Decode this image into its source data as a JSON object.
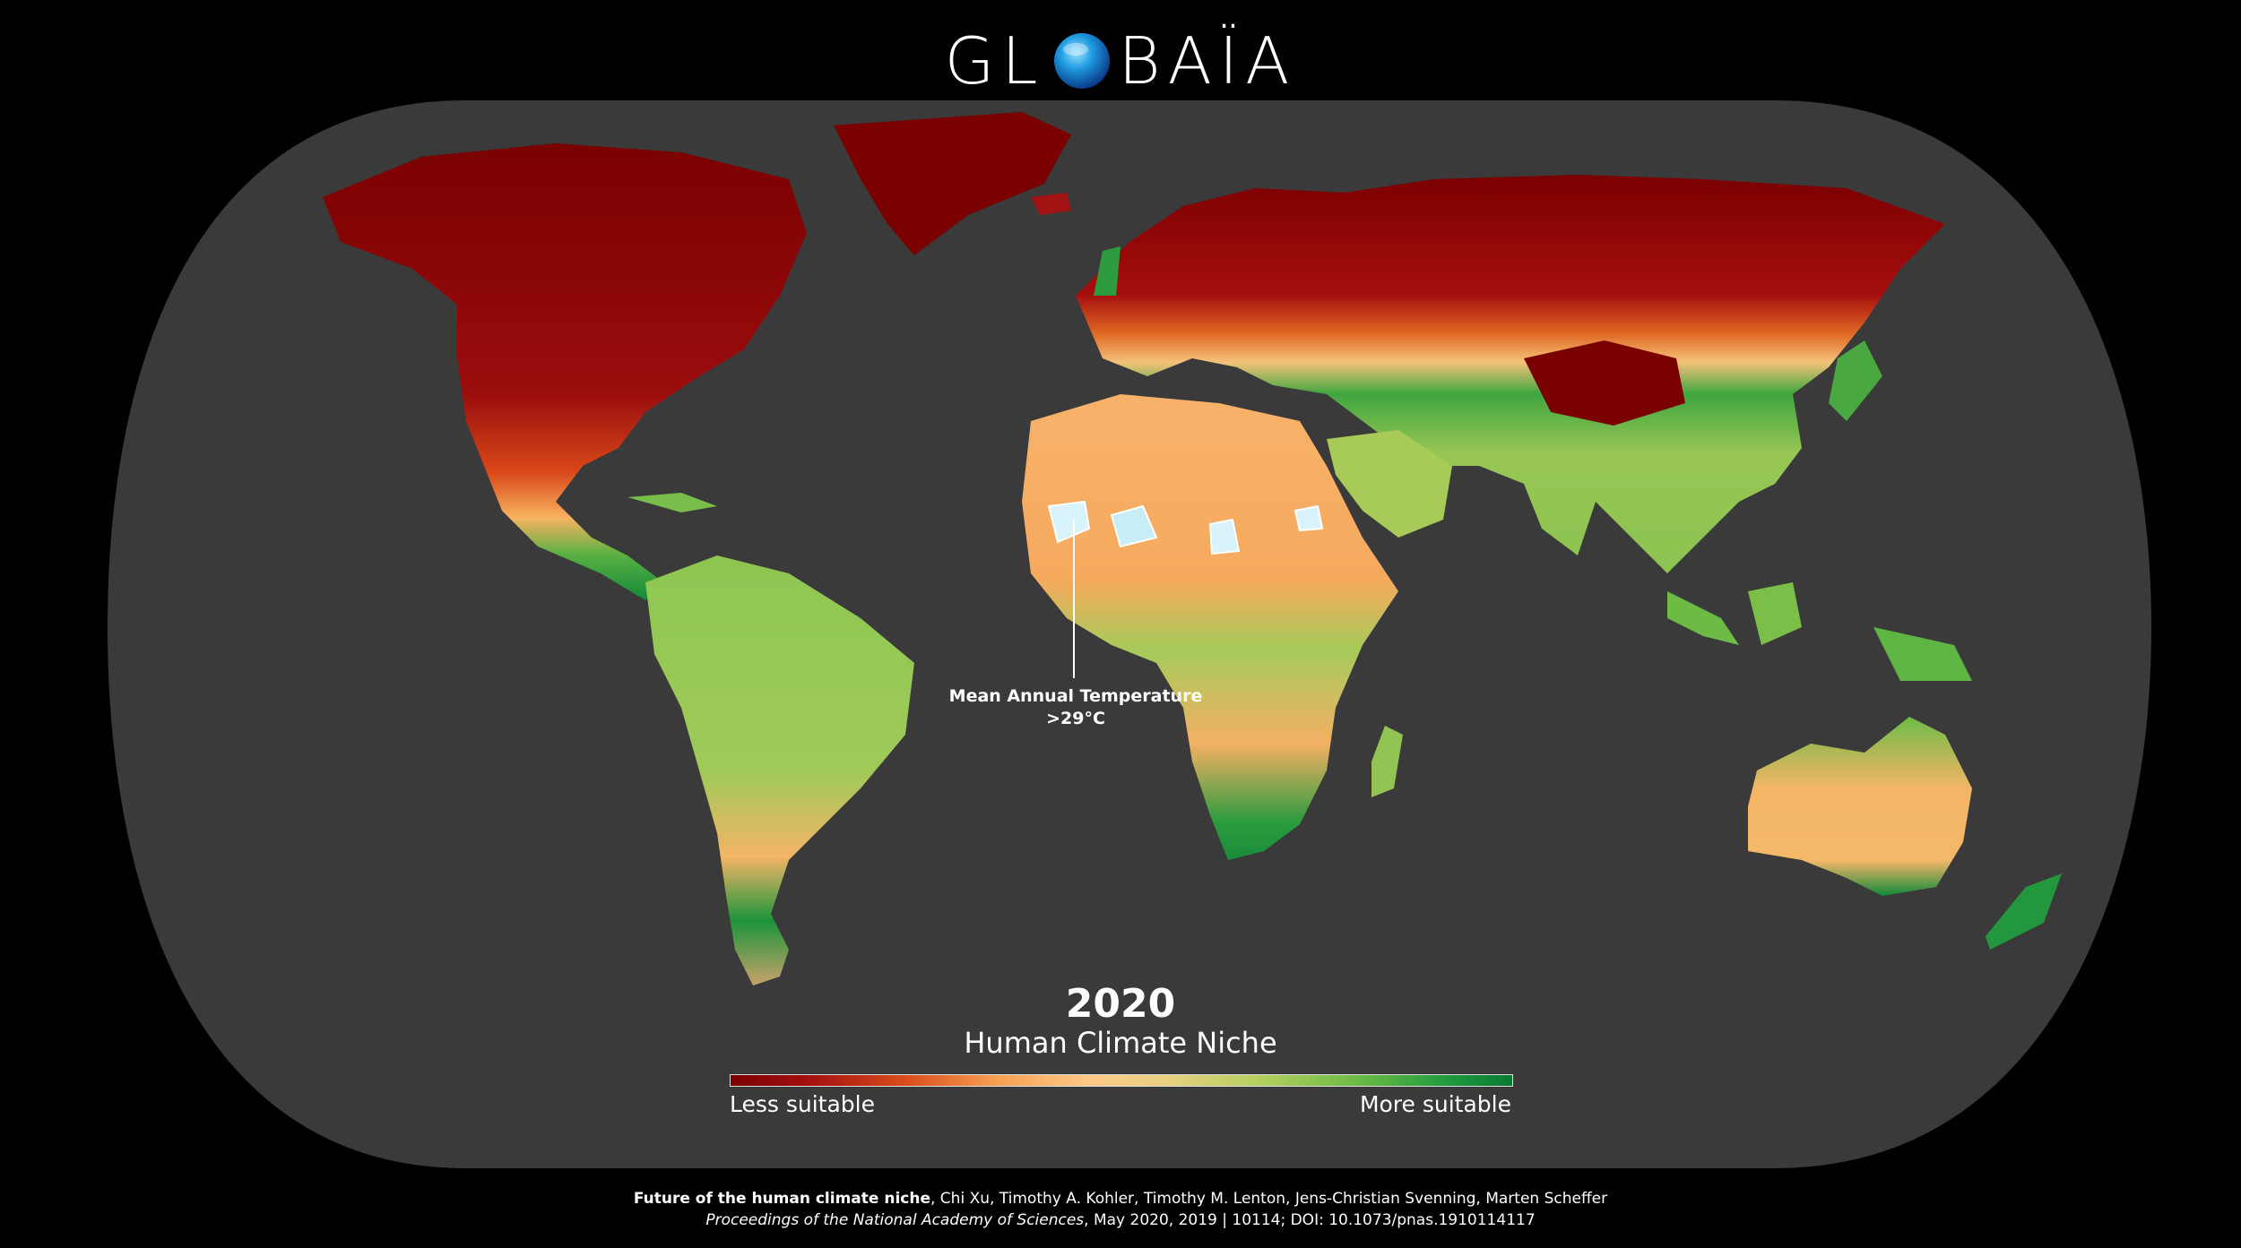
{
  "logo": {
    "text_left": "GL",
    "text_right": "BAÏA",
    "globe_icon": "globe-icon"
  },
  "map": {
    "annotation": {
      "line1": "Mean Annual Temperature",
      "line2": ">29°C"
    }
  },
  "title": {
    "year": "2020",
    "subtitle": "Human Climate Niche"
  },
  "legend": {
    "less_label": "Less suitable",
    "more_label": "More suitable",
    "colors": [
      "#7a0000",
      "#d94a1a",
      "#f6a052",
      "#fdc987",
      "#b2cf5e",
      "#6dbb45",
      "#0b7a34"
    ]
  },
  "footer": {
    "line1_bold": "Future of the human climate niche",
    "line1_rest": ", Chi Xu, Timothy A. Kohler, Timothy M. Lenton, Jens-Christian Svenning, Marten Scheffer",
    "line2_italic": "Proceedings of the National Academy of Sciences",
    "line2_rest": ", May 2020, 2019 | 10114; DOI: 10.1073/pnas.1910114117"
  },
  "colors": {
    "background": "#000000",
    "ocean": "#3a3a3a",
    "high_suitability": "#0b7a34",
    "low_suitability": "#7a0000",
    "mid_suitability": "#f6b36a",
    "hot_zone": "#d8f3fb"
  }
}
